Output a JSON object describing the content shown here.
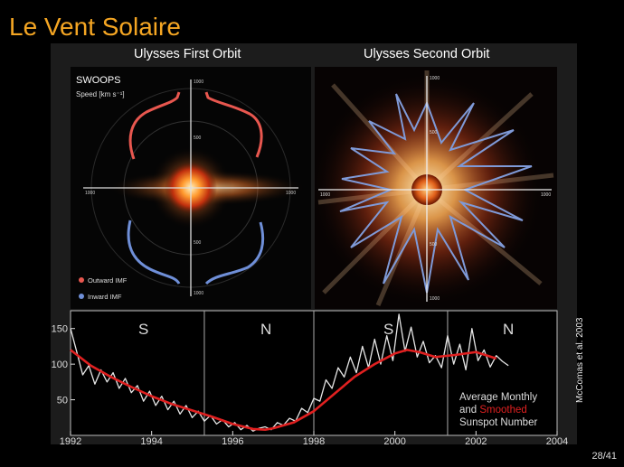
{
  "slide": {
    "title": "Le Vent Solaire",
    "page": "28/41",
    "credit": "McComas et al. 2003"
  },
  "first_orbit": {
    "title": "Ulysses First Orbit",
    "instrument": "SWOOPS",
    "speed_label": "Speed [km s⁻¹]",
    "ticks": [
      "1000",
      "500",
      "500",
      "1000",
      "1000",
      "1000"
    ],
    "legend": [
      {
        "label": "Outward IMF",
        "color": "#e8574f"
      },
      {
        "label": "Inward IMF",
        "color": "#6f8fd8"
      }
    ]
  },
  "second_orbit": {
    "title": "Ulysses Second Orbit",
    "ticks": [
      "1000",
      "500",
      "500",
      "1000",
      "1000",
      "1000"
    ]
  },
  "sunspot": {
    "hemisphere_labels": [
      "S",
      "N",
      "S",
      "N"
    ],
    "legend_line1": "Average Monthly",
    "legend_and": "and ",
    "legend_smoothed": "Smoothed",
    "legend_line3": "Sunspot Number",
    "smoothed_color": "#e02020"
  },
  "chart_data": {
    "type": "line",
    "xlim": [
      1992,
      2004
    ],
    "ylim": [
      0,
      175
    ],
    "x_ticks": [
      "1992",
      "1994",
      "1996",
      "1998",
      "2000",
      "2002",
      "2004"
    ],
    "y_ticks": [
      "150",
      "100",
      "50"
    ],
    "dividers": [
      1995.3,
      1998.0,
      2001.3
    ],
    "series": [
      {
        "name": "Average Monthly",
        "color": "#e6e6e6",
        "x": [
          1992.0,
          1992.15,
          1992.3,
          1992.45,
          1992.6,
          1992.75,
          1992.9,
          1993.05,
          1993.2,
          1993.35,
          1993.5,
          1993.65,
          1993.8,
          1993.95,
          1994.1,
          1994.25,
          1994.4,
          1994.55,
          1994.7,
          1994.85,
          1995.0,
          1995.15,
          1995.3,
          1995.45,
          1995.6,
          1995.75,
          1995.9,
          1996.05,
          1996.2,
          1996.35,
          1996.5,
          1996.65,
          1996.8,
          1996.95,
          1997.1,
          1997.25,
          1997.4,
          1997.55,
          1997.7,
          1997.85,
          1998.0,
          1998.15,
          1998.3,
          1998.45,
          1998.6,
          1998.75,
          1998.9,
          1999.05,
          1999.2,
          1999.35,
          1999.5,
          1999.65,
          1999.8,
          1999.95,
          2000.1,
          2000.25,
          2000.4,
          2000.55,
          2000.7,
          2000.85,
          2001.0,
          2001.15,
          2001.3,
          2001.45,
          2001.6,
          2001.75,
          2001.9,
          2002.05,
          2002.2,
          2002.35,
          2002.5,
          2002.65,
          2002.8
        ],
        "y": [
          150,
          118,
          85,
          98,
          72,
          92,
          75,
          88,
          66,
          80,
          60,
          70,
          48,
          62,
          42,
          55,
          36,
          48,
          30,
          42,
          25,
          34,
          20,
          28,
          16,
          22,
          12,
          18,
          8,
          14,
          6,
          10,
          12,
          8,
          18,
          14,
          24,
          20,
          38,
          32,
          52,
          48,
          78,
          66,
          95,
          82,
          110,
          88,
          125,
          95,
          135,
          100,
          140,
          105,
          170,
          118,
          152,
          110,
          132,
          102,
          112,
          95,
          140,
          100,
          128,
          92,
          150,
          105,
          120,
          96,
          112,
          104,
          98
        ]
      },
      {
        "name": "Smoothed",
        "color": "#e02020",
        "x": [
          1992.0,
          1992.5,
          1993.0,
          1993.5,
          1994.0,
          1994.5,
          1995.0,
          1995.5,
          1996.0,
          1996.5,
          1996.8,
          1997.0,
          1997.5,
          1998.0,
          1998.5,
          1999.0,
          1999.5,
          2000.0,
          2000.3,
          2000.6,
          2001.0,
          2001.5,
          2002.0,
          2002.5
        ],
        "y": [
          120,
          98,
          82,
          68,
          55,
          44,
          35,
          26,
          16,
          9,
          8,
          10,
          18,
          34,
          58,
          82,
          100,
          115,
          120,
          117,
          110,
          113,
          117,
          108
        ]
      }
    ]
  }
}
